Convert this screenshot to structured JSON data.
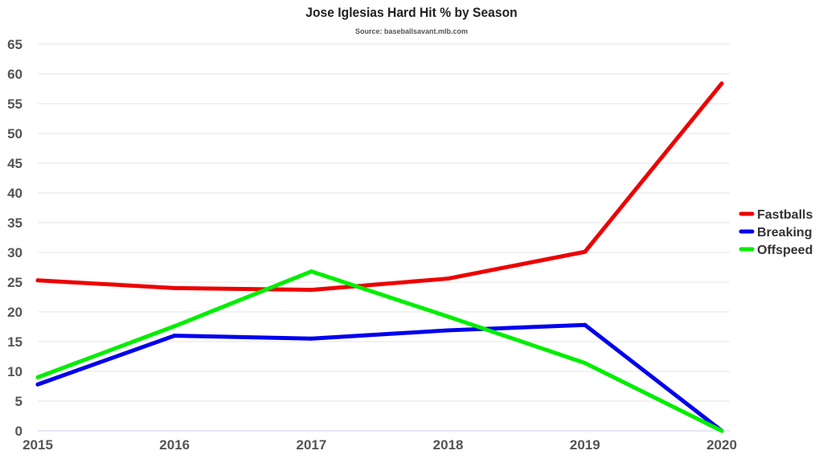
{
  "chart_data": {
    "type": "line",
    "title": "Jose Iglesias Hard Hit % by Season",
    "subtitle": "Source: baseballsavant.mlb.com",
    "x": [
      "2015",
      "2016",
      "2017",
      "2018",
      "2019",
      "2020"
    ],
    "ylim": [
      0,
      65
    ],
    "yticks": [
      0,
      5,
      10,
      15,
      20,
      25,
      30,
      35,
      40,
      45,
      50,
      55,
      60,
      65
    ],
    "grid": true,
    "legend_position": "right",
    "series": [
      {
        "name": "Fastballs",
        "color": "#ee0000",
        "values": [
          25.3,
          24.0,
          23.7,
          25.6,
          30.1,
          58.4
        ]
      },
      {
        "name": "Breaking",
        "color": "#0000ee",
        "values": [
          7.8,
          16.0,
          15.5,
          16.9,
          17.8,
          0
        ]
      },
      {
        "name": "Offspeed",
        "color": "#00ee00",
        "values": [
          9.0,
          17.6,
          26.8,
          19.2,
          11.4,
          0
        ]
      }
    ]
  }
}
